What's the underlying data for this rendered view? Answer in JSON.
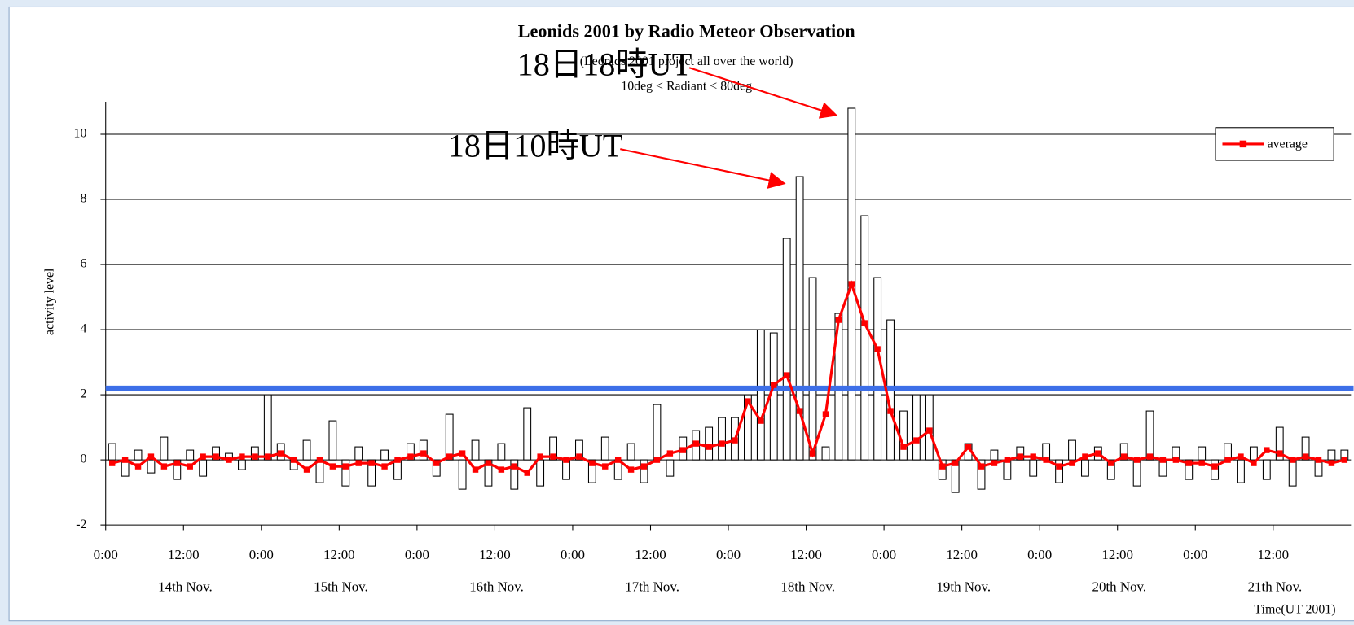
{
  "chart_data": {
    "type": "bar-line",
    "title": "Leonids 2001 by Radio Meteor Observation",
    "subtitle": [
      "(Leonids 2001 project all over the world)",
      "10deg < Radiant < 80deg"
    ],
    "ylabel": "activity level",
    "xlabel": "Time(UT 2001)",
    "xlim": [
      0,
      192
    ],
    "ylim": [
      -2,
      11
    ],
    "yticks": [
      -2,
      0,
      2,
      4,
      6,
      8,
      10
    ],
    "grid": true,
    "xticks": [
      {
        "value": 0,
        "label": "0:00"
      },
      {
        "value": 12,
        "label": "12:00"
      },
      {
        "value": 24,
        "label": "0:00"
      },
      {
        "value": 36,
        "label": "12:00"
      },
      {
        "value": 48,
        "label": "0:00"
      },
      {
        "value": 60,
        "label": "12:00"
      },
      {
        "value": 72,
        "label": "0:00"
      },
      {
        "value": 84,
        "label": "12:00"
      },
      {
        "value": 96,
        "label": "0:00"
      },
      {
        "value": 108,
        "label": "12:00"
      },
      {
        "value": 120,
        "label": "0:00"
      },
      {
        "value": 132,
        "label": "12:00"
      },
      {
        "value": 144,
        "label": "0:00"
      },
      {
        "value": 156,
        "label": "12:00"
      },
      {
        "value": 168,
        "label": "0:00"
      },
      {
        "value": 180,
        "label": "12:00"
      }
    ],
    "day_labels": [
      "14th Nov.",
      "15th Nov.",
      "16th Nov.",
      "17th Nov.",
      "18th Nov.",
      "19th Nov.",
      "20th Nov.",
      "21th Nov."
    ],
    "x": [
      1,
      3,
      5,
      7,
      9,
      11,
      13,
      15,
      17,
      19,
      21,
      23,
      25,
      27,
      29,
      31,
      33,
      35,
      37,
      39,
      41,
      43,
      45,
      47,
      49,
      51,
      53,
      55,
      57,
      59,
      61,
      63,
      65,
      67,
      69,
      71,
      73,
      75,
      77,
      79,
      81,
      83,
      85,
      87,
      89,
      91,
      93,
      95,
      97,
      99,
      101,
      103,
      105,
      107,
      109,
      111,
      113,
      115,
      117,
      119,
      121,
      123,
      125,
      127,
      129,
      131,
      133,
      135,
      137,
      139,
      141,
      143,
      145,
      147,
      149,
      151,
      153,
      155,
      157,
      159,
      161,
      163,
      165,
      167,
      169,
      171,
      173,
      175,
      177,
      179,
      181,
      183,
      185,
      187,
      189,
      191
    ],
    "series": [
      {
        "type": "bar",
        "color": "#ffffff",
        "values": [
          0.5,
          -0.5,
          0.3,
          -0.4,
          0.7,
          -0.6,
          0.3,
          -0.5,
          0.4,
          0.2,
          -0.3,
          0.4,
          2.0,
          0.5,
          -0.3,
          0.6,
          -0.7,
          1.2,
          -0.8,
          0.4,
          -0.8,
          0.3,
          -0.6,
          0.5,
          0.6,
          -0.5,
          1.4,
          -0.9,
          0.6,
          -0.8,
          0.5,
          -0.9,
          1.6,
          -0.8,
          0.7,
          -0.6,
          0.6,
          -0.7,
          0.7,
          -0.6,
          0.5,
          -0.7,
          1.7,
          -0.5,
          0.7,
          0.9,
          1.0,
          1.3,
          1.3,
          2.0,
          4.0,
          3.9,
          6.8,
          8.7,
          5.6,
          0.4,
          4.5,
          10.8,
          7.5,
          5.6,
          4.3,
          1.5,
          2.0,
          2.0,
          -0.6,
          -1.0,
          0.5,
          -0.9,
          0.3,
          -0.6,
          0.4,
          -0.5,
          0.5,
          -0.7,
          0.6,
          -0.5,
          0.4,
          -0.6,
          0.5,
          -0.8,
          1.5,
          -0.5,
          0.4,
          -0.6,
          0.4,
          -0.6,
          0.5,
          -0.7,
          0.4,
          -0.6,
          1.0,
          -0.8,
          0.7,
          -0.5,
          0.3,
          0.3
        ]
      },
      {
        "type": "line",
        "name": "average",
        "color": "#ff0000",
        "values": [
          -0.1,
          0,
          -0.2,
          0.1,
          -0.2,
          -0.1,
          -0.2,
          0.1,
          0.1,
          0,
          0.1,
          0.1,
          0.1,
          0.2,
          0,
          -0.3,
          0,
          -0.2,
          -0.2,
          -0.1,
          -0.1,
          -0.2,
          0,
          0.1,
          0.2,
          -0.1,
          0.1,
          0.2,
          -0.3,
          -0.1,
          -0.3,
          -0.2,
          -0.4,
          0.1,
          0.1,
          0,
          0.1,
          -0.1,
          -0.2,
          0,
          -0.3,
          -0.2,
          0,
          0.2,
          0.3,
          0.5,
          0.4,
          0.5,
          0.6,
          1.8,
          1.2,
          2.3,
          2.6,
          1.5,
          0.2,
          1.4,
          4.3,
          5.4,
          4.2,
          3.4,
          1.5,
          0.4,
          0.6,
          0.9,
          -0.2,
          -0.1,
          0.4,
          -0.2,
          -0.1,
          0,
          0.1,
          0.1,
          0,
          -0.2,
          -0.1,
          0.1,
          0.2,
          -0.1,
          0.1,
          0,
          0.1,
          0,
          0,
          -0.1,
          -0.1,
          -0.2,
          0,
          0.1,
          -0.1,
          0.3,
          0.2,
          0,
          0.1,
          0,
          -0.1,
          0
        ]
      }
    ],
    "hline": {
      "value": 2.2,
      "color": "#3d6fe8"
    },
    "annotations": [
      {
        "text": "18日10時UT",
        "x": 107,
        "y": 8.7,
        "color": "#ff0000"
      },
      {
        "text": "18日18時UT",
        "x": 115,
        "y": 10.8,
        "color": "#ff0000"
      }
    ],
    "legend": "top-right"
  }
}
